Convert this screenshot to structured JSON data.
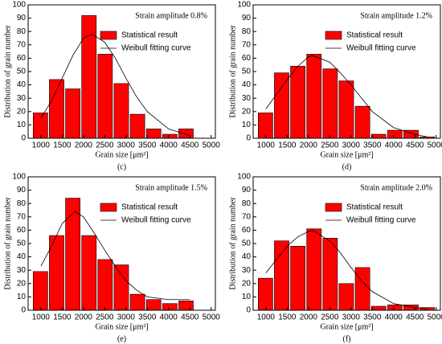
{
  "chart_data": [
    {
      "type": "histogram",
      "title": "Strain amplitude 0.8%",
      "caption": "(c)",
      "x_label": "Grain size [μm²]",
      "y_label": "Distribution of grain number",
      "bins": [
        800,
        1180,
        1560,
        1940,
        2320,
        2700,
        3080,
        3460,
        3840,
        4220,
        4600
      ],
      "series": [
        {
          "name": "Statistical result",
          "color": "#ff0000",
          "values": [
            19,
            44,
            37,
            92,
            63,
            41,
            18,
            7,
            3,
            7
          ]
        },
        {
          "name": "Weibull fitting curve",
          "color": "#000000",
          "x": [
            1000,
            1250,
            1500,
            1750,
            2000,
            2200,
            2500,
            2750,
            3000,
            3250,
            3500,
            4000,
            4500
          ],
          "values": [
            15,
            28,
            45,
            62,
            75,
            78,
            72,
            60,
            45,
            31,
            20,
            7,
            2
          ]
        }
      ],
      "xlim": [
        700,
        5100
      ],
      "ylim": [
        0,
        100
      ],
      "xticks": [
        1000,
        1500,
        2000,
        2500,
        3000,
        3500,
        4000,
        4500,
        5000
      ],
      "yticks": [
        0,
        10,
        20,
        30,
        40,
        50,
        60,
        70,
        80,
        90,
        100
      ]
    },
    {
      "type": "histogram",
      "title": "Strain amplitude 1.2%",
      "caption": "(d)",
      "x_label": "Grain size [μm²]",
      "y_label": "Distribution of grain number",
      "bins": [
        800,
        1180,
        1560,
        1940,
        2320,
        2700,
        3080,
        3460,
        3840,
        4220,
        4600,
        4980
      ],
      "series": [
        {
          "name": "Statistical result",
          "color": "#ff0000",
          "values": [
            19,
            49,
            54,
            63,
            52,
            43,
            24,
            3,
            6,
            6,
            1
          ]
        },
        {
          "name": "Weibull fitting curve",
          "color": "#000000",
          "x": [
            1000,
            1250,
            1500,
            1750,
            2000,
            2100,
            2500,
            2750,
            3000,
            3250,
            3500,
            4000,
            4500,
            4800
          ],
          "values": [
            22,
            33,
            44,
            54,
            61,
            62,
            57,
            49,
            40,
            30,
            20,
            8,
            3,
            1
          ]
        }
      ],
      "xlim": [
        700,
        5100
      ],
      "ylim": [
        0,
        100
      ],
      "xticks": [
        1000,
        1500,
        2000,
        2500,
        3000,
        3500,
        4000,
        4500,
        5000
      ],
      "yticks": [
        0,
        10,
        20,
        30,
        40,
        50,
        60,
        70,
        80,
        90,
        100
      ]
    },
    {
      "type": "histogram",
      "title": "Strain amplitude 1.5%",
      "caption": "(e)",
      "x_label": "Grain size [μm²]",
      "y_label": "Distribution of grain number",
      "bins": [
        800,
        1180,
        1560,
        1940,
        2320,
        2700,
        3080,
        3460,
        3840,
        4220,
        4600
      ],
      "series": [
        {
          "name": "Statistical result",
          "color": "#ff0000",
          "values": [
            29,
            56,
            84,
            56,
            38,
            34,
            12,
            8,
            5,
            7
          ]
        },
        {
          "name": "Weibull fitting curve",
          "color": "#000000",
          "x": [
            1000,
            1250,
            1500,
            1800,
            2000,
            2250,
            2500,
            2750,
            3000,
            3250,
            3500,
            4000,
            4500
          ],
          "values": [
            33,
            48,
            65,
            74,
            70,
            58,
            45,
            33,
            22,
            15,
            10,
            8,
            8
          ]
        }
      ],
      "xlim": [
        700,
        5100
      ],
      "ylim": [
        0,
        100
      ],
      "xticks": [
        1000,
        1500,
        2000,
        2500,
        3000,
        3500,
        4000,
        4500,
        5000
      ],
      "yticks": [
        0,
        10,
        20,
        30,
        40,
        50,
        60,
        70,
        80,
        90,
        100
      ]
    },
    {
      "type": "histogram",
      "title": "Strain amplitude 2.0%",
      "caption": "(f)",
      "x_label": "Grain size [μm²]",
      "y_label": "Distribution of grain number",
      "bins": [
        800,
        1180,
        1560,
        1940,
        2320,
        2700,
        3080,
        3460,
        3840,
        4220,
        4600,
        4980
      ],
      "series": [
        {
          "name": "Statistical result",
          "color": "#ff0000",
          "values": [
            24,
            52,
            48,
            61,
            54,
            20,
            32,
            3,
            4,
            4,
            2
          ]
        },
        {
          "name": "Weibull fitting curve",
          "color": "#000000",
          "x": [
            1000,
            1250,
            1500,
            1750,
            2000,
            2100,
            2500,
            2750,
            3000,
            3250,
            3500,
            4000,
            4500,
            4800
          ],
          "values": [
            28,
            38,
            48,
            55,
            59,
            60,
            52,
            43,
            32,
            22,
            14,
            5,
            2,
            1
          ]
        }
      ],
      "xlim": [
        700,
        5100
      ],
      "ylim": [
        0,
        100
      ],
      "xticks": [
        1000,
        1500,
        2000,
        2500,
        3000,
        3500,
        4000,
        4500,
        5000
      ],
      "yticks": [
        0,
        10,
        20,
        30,
        40,
        50,
        60,
        70,
        80,
        90,
        100
      ]
    }
  ]
}
